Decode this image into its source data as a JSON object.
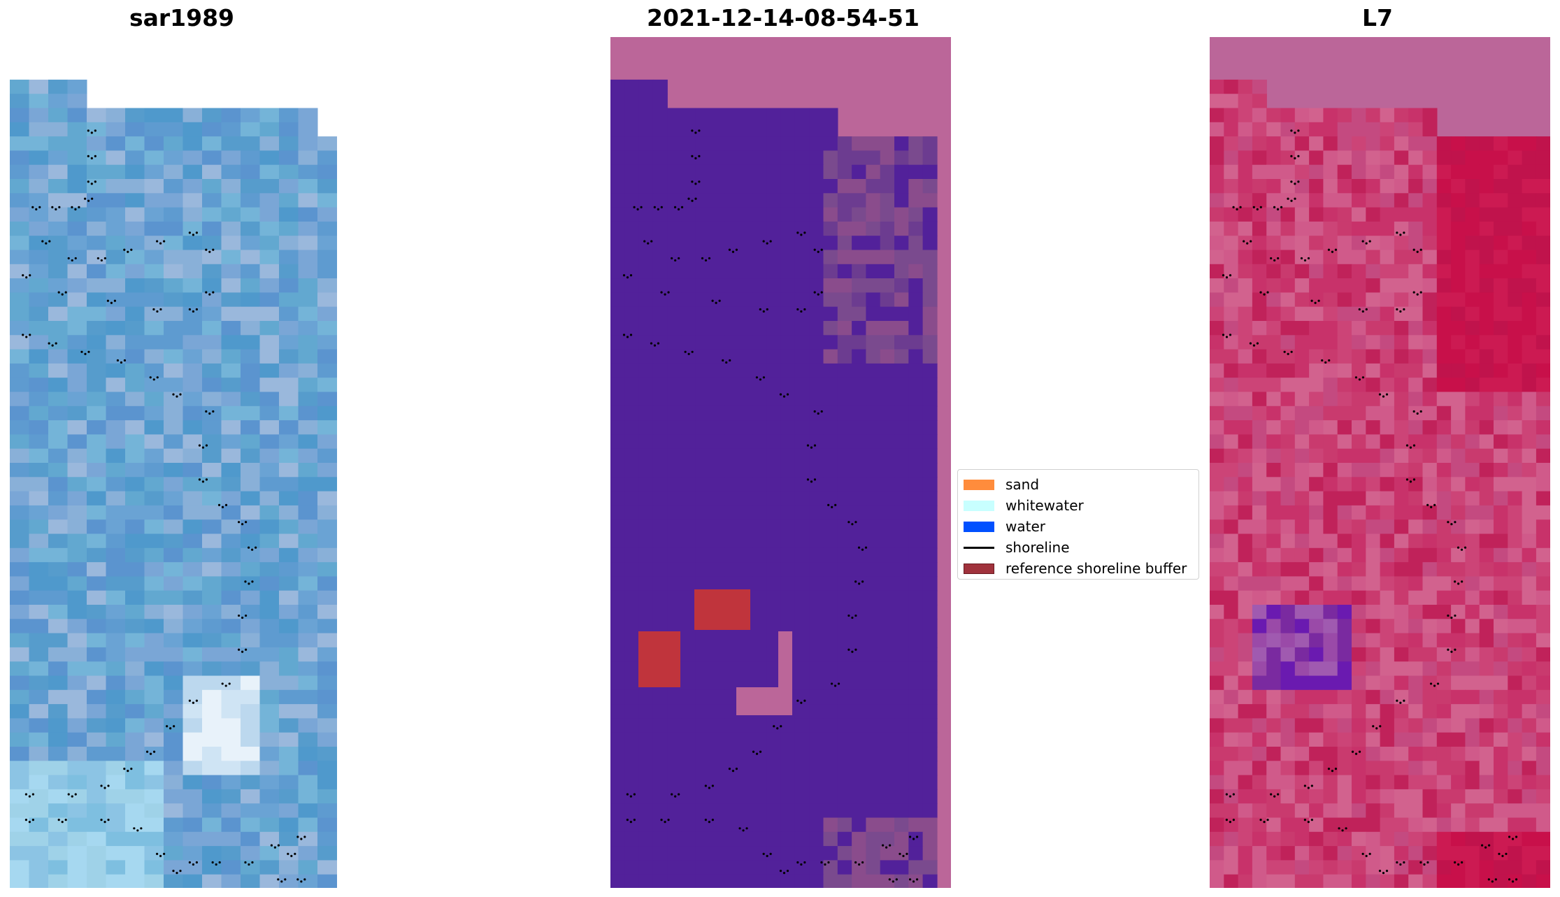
{
  "panels": [
    {
      "title": "sar1989"
    },
    {
      "title": "2021-12-14-08-54-51"
    },
    {
      "title": "L7"
    }
  ],
  "legend": {
    "items": [
      {
        "label": "sand",
        "color": "#ff8c3c",
        "kind": "patch"
      },
      {
        "label": "whitewater",
        "color": "#c8ffff",
        "kind": "patch"
      },
      {
        "label": "water",
        "color": "#0050ff",
        "kind": "patch"
      },
      {
        "label": "shoreline",
        "color": "#000000",
        "kind": "line"
      },
      {
        "label": "reference shoreline buffer",
        "color": "#a0323c",
        "kind": "patch"
      }
    ]
  },
  "colors": {
    "water_class": "#52219a",
    "nodata_overlay": "#bb6699",
    "buffer": "#c0343c",
    "rgb_base": "#5e9bd0",
    "ndwi_base": "#cc4477"
  }
}
